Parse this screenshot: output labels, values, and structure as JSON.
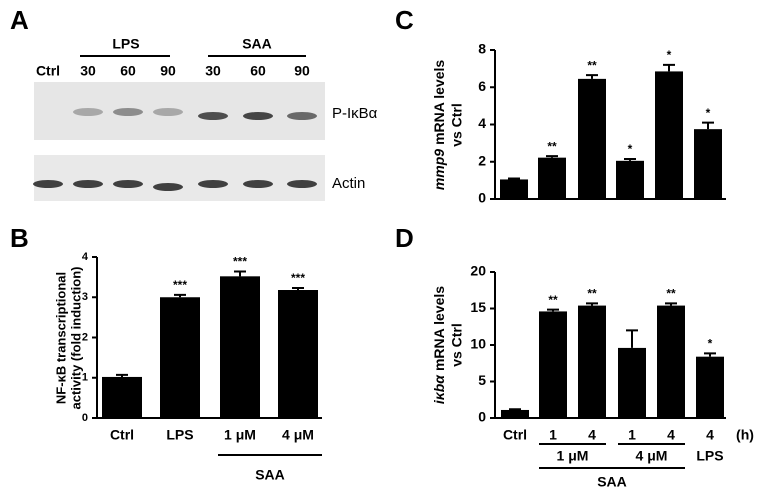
{
  "panels": [
    "A",
    "B",
    "C",
    "D"
  ],
  "blot": {
    "lanes": [
      "Ctrl",
      "30",
      "60",
      "90",
      "30",
      "60",
      "90"
    ],
    "groups": [
      "LPS",
      "SAA"
    ],
    "rows": [
      "P-IκBα",
      "Actin"
    ]
  },
  "chart_data": [
    {
      "type": "bar",
      "ylabel": [
        "NF-κB transcriptional",
        "activity (fold induction)"
      ],
      "categories": [
        "Ctrl",
        "LPS",
        "1 μM",
        "4 μM"
      ],
      "values": [
        1.02,
        3.0,
        3.52,
        3.18
      ],
      "errors": [
        0.05,
        0.06,
        0.12,
        0.05
      ],
      "annotations": [
        null,
        "***",
        "***",
        "***"
      ],
      "group_label": "SAA",
      "color": "#000000",
      "ylim": [
        0,
        4
      ],
      "yticks": [
        0,
        1,
        2,
        3,
        4
      ]
    },
    {
      "type": "bar",
      "ylabel": {
        "italic": "mmp9",
        "text": "mRNA levels",
        "line2": "vs Ctrl"
      },
      "values": [
        1.05,
        2.22,
        6.45,
        2.05,
        6.85,
        3.75
      ],
      "errors": [
        0.05,
        0.08,
        0.2,
        0.1,
        0.35,
        0.35
      ],
      "annotations": [
        null,
        "**",
        "**",
        "*",
        "*",
        "*"
      ],
      "color": "#000000",
      "ylim": [
        0,
        8
      ],
      "yticks": [
        0,
        2,
        4,
        6,
        8
      ]
    },
    {
      "type": "bar",
      "ylabel": {
        "italic": "iκbα",
        "text": "mRNA levels",
        "line2": "vs Ctrl"
      },
      "categories": [
        "Ctrl",
        "1",
        "4",
        "1",
        "4",
        "4"
      ],
      "x_unit": "(h)",
      "groups": [
        "1 μM",
        "4 μM",
        "LPS"
      ],
      "group_label": "SAA",
      "values": [
        1.1,
        14.6,
        15.4,
        9.6,
        15.4,
        8.4
      ],
      "errors": [
        0.1,
        0.25,
        0.3,
        2.4,
        0.3,
        0.45
      ],
      "annotations": [
        null,
        "**",
        "**",
        null,
        "**",
        "*"
      ],
      "color": "#000000",
      "ylim": [
        0,
        20
      ],
      "yticks": [
        0,
        5,
        10,
        15,
        20
      ]
    }
  ]
}
